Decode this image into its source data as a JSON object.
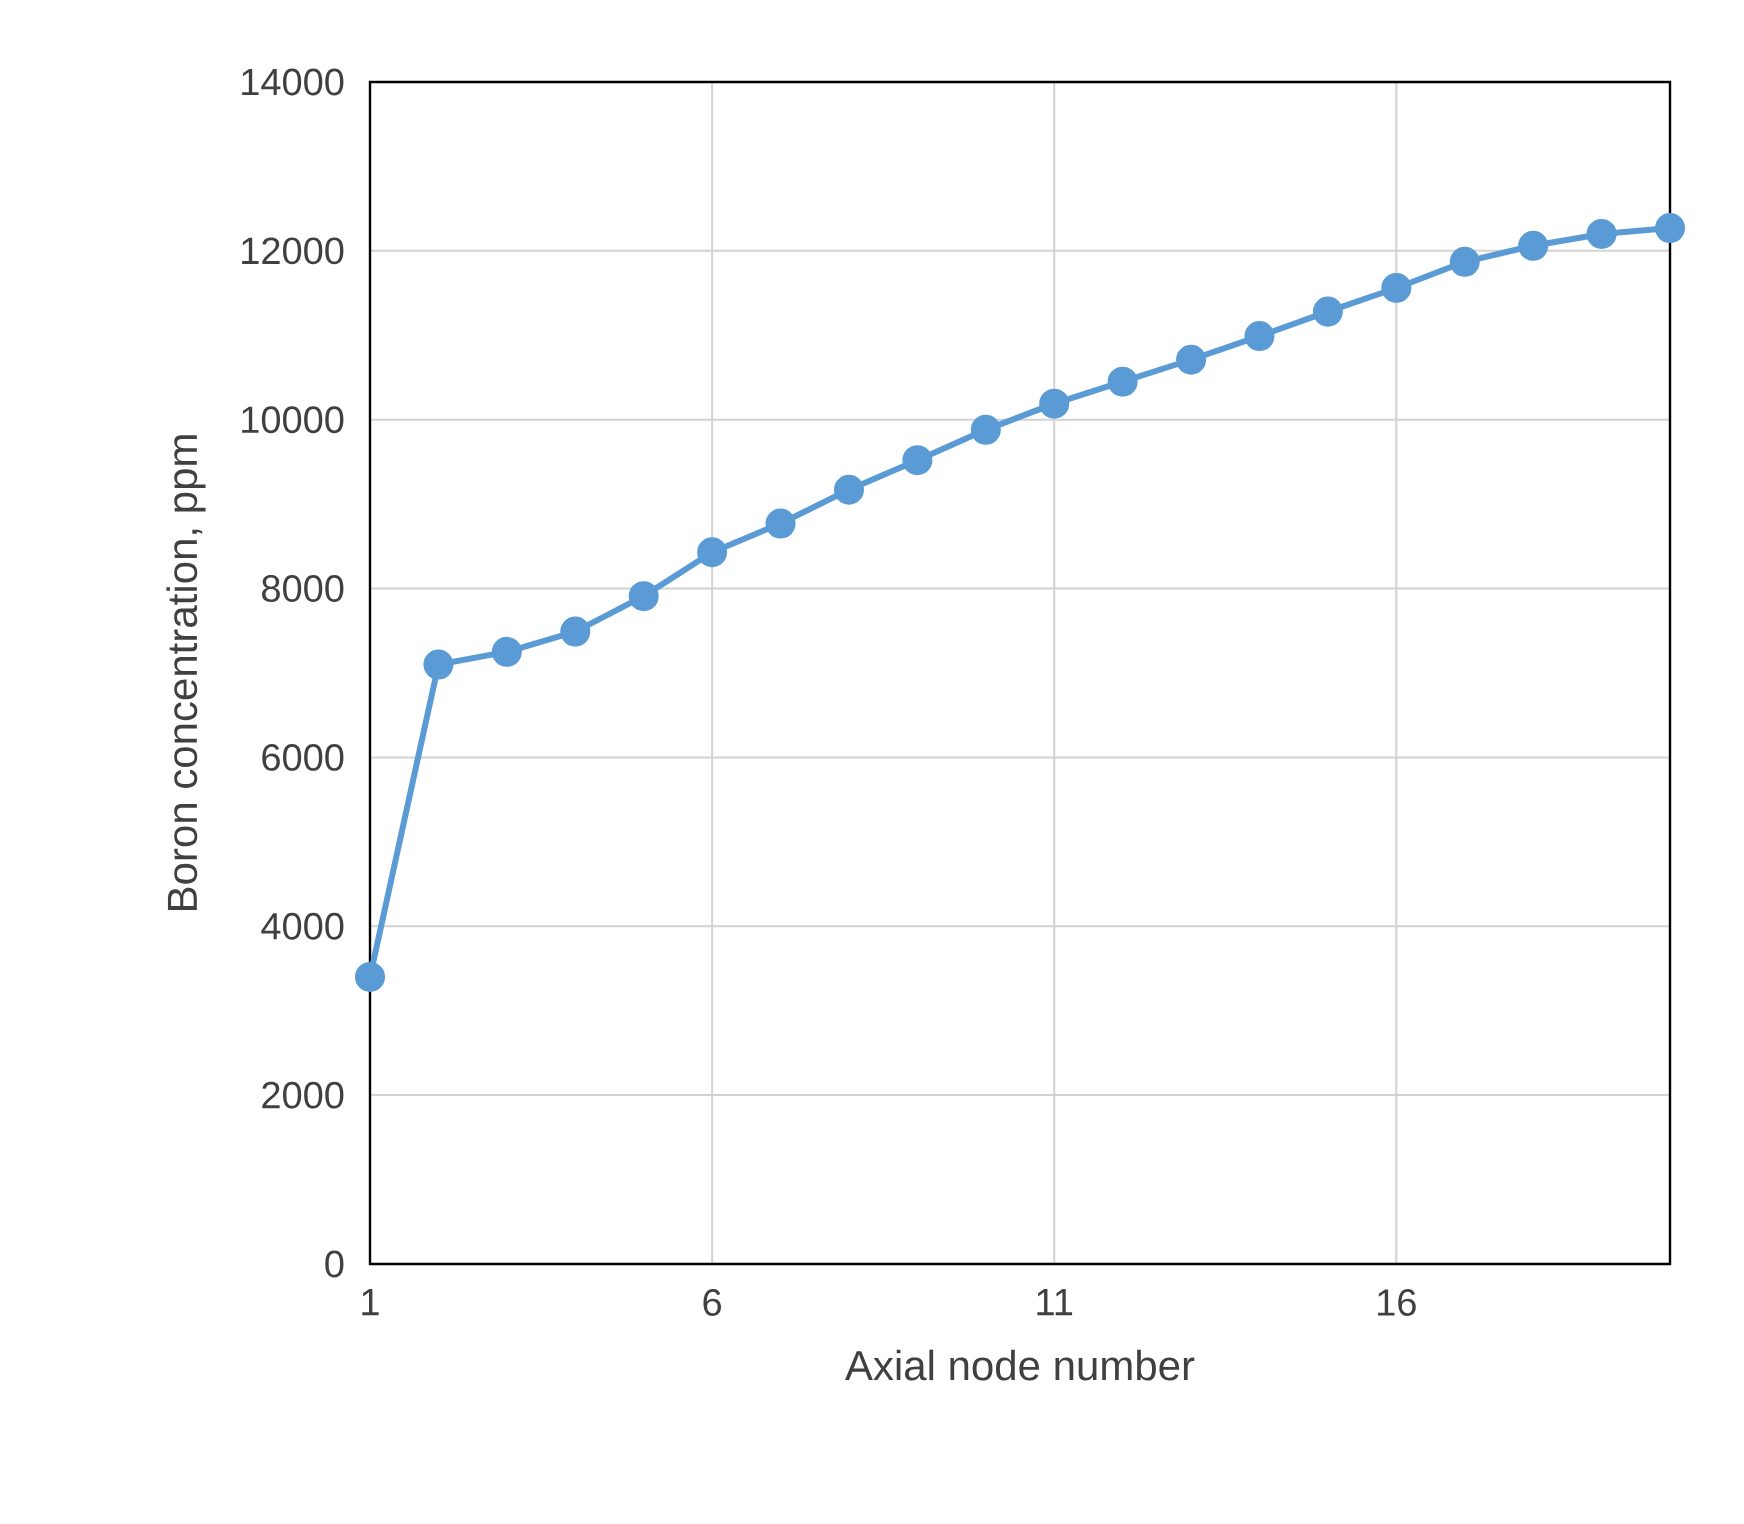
{
  "chart_data": {
    "type": "line",
    "xlabel": "Axial node number",
    "ylabel": "Boron concentration, ppm",
    "x": [
      1,
      2,
      3,
      4,
      5,
      6,
      7,
      8,
      9,
      10,
      11,
      12,
      13,
      14,
      15,
      16,
      17,
      18,
      19,
      20
    ],
    "series": [
      {
        "color": "#5b9bd5",
        "values": [
          3400,
          7100,
          7250,
          7490,
          7910,
          8430,
          8770,
          9170,
          9520,
          9880,
          10190,
          10450,
          10710,
          10990,
          11280,
          11560,
          11870,
          12060,
          12200,
          12270
        ]
      }
    ],
    "xlim": [
      1,
      20
    ],
    "xticks": [
      1,
      6,
      11,
      16
    ],
    "ylim": [
      0,
      14000
    ],
    "yticks": [
      0,
      2000,
      4000,
      6000,
      8000,
      10000,
      12000,
      14000
    ],
    "grid": true,
    "marker": "circle",
    "line_style": "solid"
  }
}
